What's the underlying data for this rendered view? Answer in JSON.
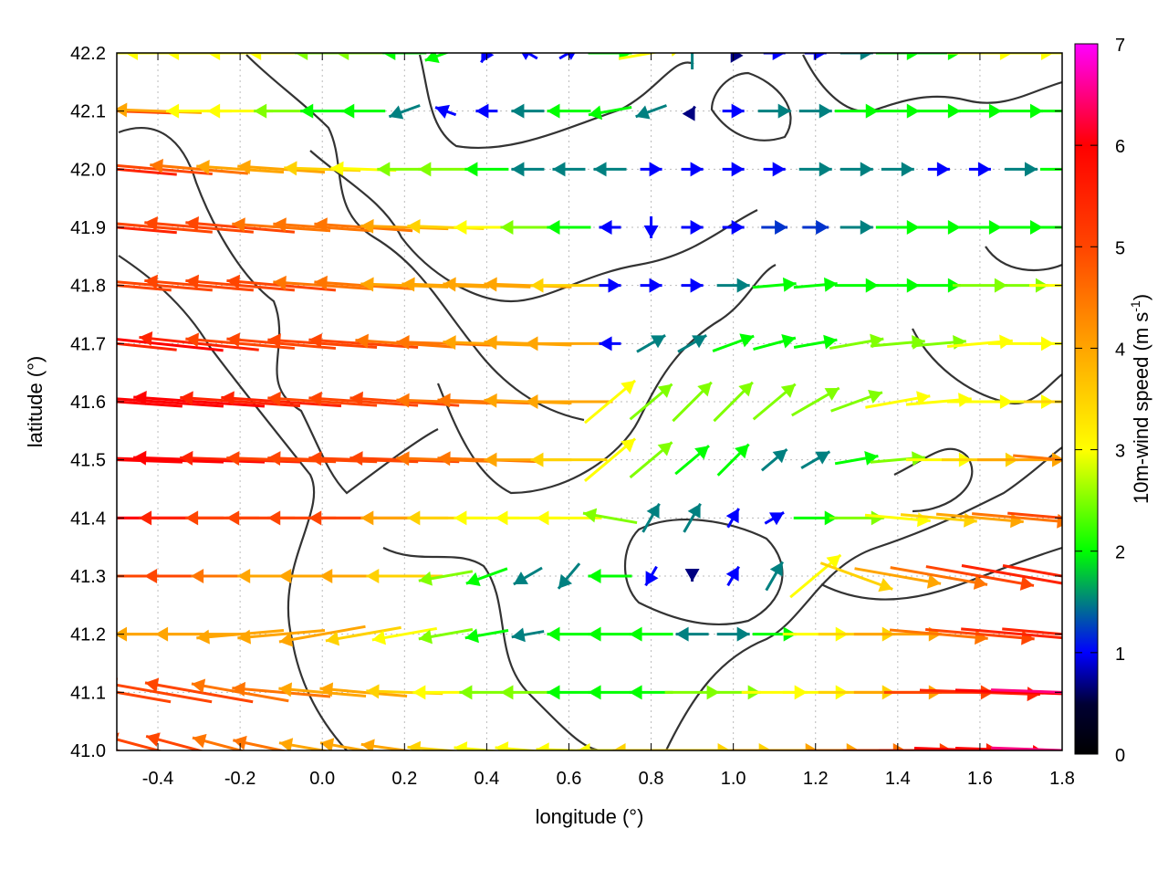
{
  "chart_data": {
    "type": "vector-field",
    "title": "",
    "xlabel": "longitude (°)",
    "ylabel": "latitude (°)",
    "xlim": [
      -0.5,
      1.8
    ],
    "ylim": [
      41.0,
      42.2
    ],
    "grid": true,
    "x_ticks": [
      "-0.4",
      "-0.2",
      "0.0",
      "0.2",
      "0.4",
      "0.6",
      "0.8",
      "1.0",
      "1.2",
      "1.4",
      "1.6",
      "1.8"
    ],
    "y_ticks": [
      "41.0",
      "41.1",
      "41.2",
      "41.3",
      "41.4",
      "41.5",
      "41.6",
      "41.7",
      "41.8",
      "41.9",
      "42.0",
      "42.1",
      "42.2"
    ],
    "colorbar": {
      "label": "10m-wind speed (m s",
      "label_sup": "-1",
      "label_end": ")",
      "range": [
        0,
        7
      ],
      "ticks": [
        "0",
        "1",
        "2",
        "3",
        "4",
        "5",
        "6",
        "7"
      ],
      "colors": [
        "#000000",
        "#0000ff",
        "#00ff00",
        "#ffff00",
        "#ffa500",
        "#ff4500",
        "#ff0000",
        "#ff00ff"
      ]
    },
    "grid_lon": [
      -0.5,
      -0.4,
      -0.3,
      -0.2,
      -0.1,
      0.0,
      0.1,
      0.2,
      0.3,
      0.4,
      0.5,
      0.6,
      0.7,
      0.8,
      0.9,
      1.0,
      1.1,
      1.2,
      1.3,
      1.4,
      1.5,
      1.6,
      1.7,
      1.8
    ],
    "grid_lat": [
      42.2,
      42.1,
      42.0,
      41.9,
      41.8,
      41.7,
      41.6,
      41.5,
      41.4,
      41.3,
      41.2,
      41.1,
      41.0
    ],
    "speed_ms": [
      [
        3,
        3,
        3,
        3,
        3,
        2.5,
        2.5,
        2,
        2,
        1,
        1,
        1,
        2,
        3,
        1.5,
        0.5,
        1,
        1,
        1.5,
        2,
        2,
        3,
        3,
        3
      ],
      [
        5,
        4,
        3,
        3,
        2.5,
        2,
        2,
        1.5,
        1,
        1,
        1.5,
        2,
        2,
        1.5,
        0.5,
        1,
        1.5,
        1.5,
        2,
        2,
        2,
        2,
        2,
        2
      ],
      [
        5.5,
        5,
        4.5,
        4,
        4,
        3.5,
        3,
        2.5,
        2.5,
        2,
        1.5,
        1.5,
        1.5,
        1,
        1,
        1,
        1,
        1.5,
        1.5,
        1.5,
        1,
        1,
        1.5,
        2
      ],
      [
        5.5,
        5,
        5,
        5,
        4.5,
        4.5,
        4.5,
        4,
        3.5,
        3,
        2.5,
        2,
        1,
        1,
        1,
        1,
        1.2,
        1.2,
        1.5,
        2,
        2,
        2,
        2,
        2
      ],
      [
        5,
        5,
        5,
        5,
        5,
        4.5,
        4.5,
        4,
        4,
        4,
        4,
        3.5,
        1,
        1,
        1,
        1.5,
        2,
        2,
        2,
        2,
        2,
        2.5,
        2.5,
        3
      ],
      [
        5.5,
        6,
        5.5,
        5,
        5,
        5,
        5,
        4.5,
        4.5,
        4,
        4,
        4,
        1,
        1.5,
        1.5,
        2,
        2,
        2,
        2.5,
        2.5,
        2.5,
        3,
        3,
        3
      ],
      [
        6,
        6,
        6,
        5.5,
        5.5,
        5,
        5,
        5,
        4.5,
        4.5,
        4,
        4,
        3,
        2.5,
        2.5,
        2.5,
        2.5,
        2.5,
        2.5,
        3,
        3,
        3,
        3,
        3.5
      ],
      [
        6,
        6,
        6,
        5.5,
        5,
        5,
        5,
        5,
        4.5,
        4.5,
        4,
        3.5,
        3,
        2.5,
        2,
        2,
        1.5,
        1.5,
        2,
        2.5,
        3,
        3.5,
        4,
        4.5
      ],
      [
        6.5,
        6,
        5.5,
        5,
        5,
        5,
        5,
        4,
        3.5,
        3,
        3,
        3,
        2.5,
        1.5,
        1.5,
        1,
        1,
        2,
        2.5,
        3,
        3.5,
        4,
        4.5,
        5
      ],
      [
        5.5,
        5,
        5,
        4.5,
        4,
        4,
        4,
        3.5,
        2.5,
        2,
        1.5,
        1.5,
        2,
        1,
        0.5,
        1,
        1.5,
        3,
        3.5,
        4,
        4.5,
        5,
        5.5,
        5.5
      ],
      [
        4,
        4,
        4,
        4,
        4,
        4,
        3.5,
        3,
        2.5,
        2,
        1.5,
        2,
        2,
        2,
        1.5,
        1.5,
        2,
        3,
        3.5,
        4,
        4.5,
        5,
        5.5,
        5.5
      ],
      [
        5,
        5,
        5,
        4.5,
        4.5,
        4,
        4,
        3.5,
        3,
        2.5,
        2.5,
        2,
        2,
        2,
        2.5,
        2.5,
        3,
        3,
        3.5,
        4,
        5,
        5.5,
        6,
        6.5
      ],
      [
        5.5,
        5,
        5,
        4.5,
        4.5,
        4,
        4,
        4,
        3.5,
        3,
        3,
        3,
        3,
        3.5,
        3.5,
        3.5,
        4,
        4,
        4.5,
        5,
        5.5,
        6,
        6,
        6.5
      ]
    ],
    "direction_deg": [
      [
        180,
        180,
        180,
        180,
        180,
        180,
        180,
        180,
        200,
        240,
        150,
        30,
        0,
        10,
        90,
        120,
        0,
        0,
        0,
        0,
        0,
        0,
        0,
        0
      ],
      [
        178,
        178,
        180,
        180,
        180,
        180,
        180,
        200,
        160,
        180,
        180,
        180,
        190,
        200,
        60,
        0,
        0,
        0,
        0,
        0,
        0,
        0,
        0,
        0
      ],
      [
        175,
        175,
        175,
        176,
        176,
        178,
        178,
        180,
        180,
        180,
        180,
        180,
        180,
        0,
        0,
        0,
        0,
        0,
        0,
        0,
        0,
        0,
        0,
        0
      ],
      [
        175,
        175,
        175,
        175,
        176,
        176,
        176,
        178,
        178,
        180,
        180,
        180,
        180,
        270,
        0,
        0,
        0,
        0,
        0,
        0,
        0,
        0,
        0,
        0
      ],
      [
        175,
        175,
        175,
        175,
        175,
        176,
        176,
        178,
        178,
        178,
        178,
        180,
        0,
        0,
        0,
        0,
        5,
        5,
        0,
        0,
        0,
        0,
        0,
        0
      ],
      [
        174,
        174,
        174,
        175,
        175,
        176,
        176,
        176,
        178,
        178,
        178,
        180,
        180,
        30,
        30,
        20,
        15,
        10,
        10,
        5,
        5,
        5,
        0,
        0
      ],
      [
        176,
        176,
        176,
        176,
        176,
        176,
        176,
        176,
        178,
        178,
        178,
        180,
        40,
        40,
        45,
        45,
        40,
        30,
        20,
        10,
        5,
        0,
        0,
        0
      ],
      [
        178,
        178,
        178,
        178,
        178,
        178,
        178,
        178,
        178,
        178,
        180,
        180,
        40,
        40,
        40,
        45,
        40,
        30,
        10,
        5,
        0,
        0,
        0,
        355
      ],
      [
        180,
        180,
        180,
        180,
        180,
        180,
        180,
        180,
        180,
        180,
        180,
        180,
        170,
        60,
        60,
        60,
        30,
        0,
        0,
        355,
        355,
        355,
        355,
        355
      ],
      [
        180,
        180,
        180,
        180,
        180,
        180,
        180,
        180,
        190,
        200,
        210,
        230,
        180,
        240,
        270,
        60,
        60,
        40,
        340,
        350,
        350,
        350,
        350,
        350
      ],
      [
        180,
        180,
        180,
        185,
        185,
        190,
        190,
        190,
        190,
        190,
        190,
        180,
        180,
        180,
        180,
        0,
        0,
        0,
        0,
        0,
        355,
        355,
        355,
        355
      ],
      [
        170,
        170,
        170,
        170,
        175,
        175,
        175,
        178,
        180,
        180,
        180,
        180,
        180,
        180,
        0,
        0,
        0,
        0,
        0,
        0,
        0,
        358,
        358,
        358
      ],
      [
        165,
        165,
        165,
        165,
        168,
        170,
        170,
        172,
        175,
        175,
        175,
        178,
        180,
        180,
        0,
        0,
        0,
        0,
        0,
        0,
        0,
        358,
        358,
        358
      ]
    ]
  }
}
